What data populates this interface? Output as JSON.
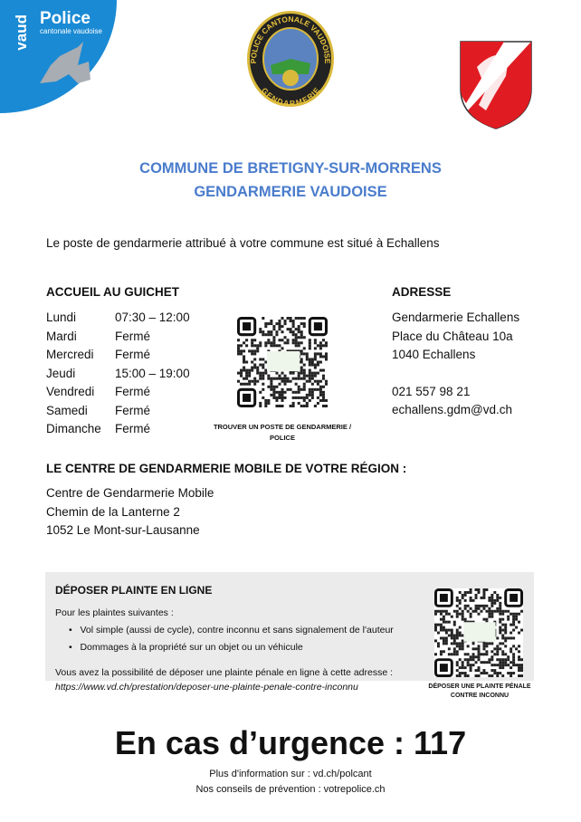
{
  "header": {
    "logo_left": {
      "brand": "Police",
      "sub": "cantonale vaudoise",
      "canton": "vaud",
      "color": "#1a8ad4"
    },
    "emblem": {
      "ring_text_top": "POLICE CANTONALE VAUDOISE",
      "ring_text_bottom": "GENDARMERIE"
    },
    "coat_of_arms": "red-white-goat-shield"
  },
  "title": {
    "line1": "COMMUNE DE BRETIGNY-SUR-MORRENS",
    "line2": "GENDARMERIE VAUDOISE",
    "color": "#4a7ccc"
  },
  "intro": "Le poste de gendarmerie attribué à votre commune est situé à Echallens",
  "guichet": {
    "heading": "ACCUEIL AU GUICHET",
    "rows": [
      {
        "day": "Lundi",
        "hours": "07:30 – 12:00"
      },
      {
        "day": "Mardi",
        "hours": "Fermé"
      },
      {
        "day": "Mercredi",
        "hours": "Fermé"
      },
      {
        "day": "Jeudi",
        "hours": "15:00 – 19:00"
      },
      {
        "day": "Vendredi",
        "hours": "Fermé"
      },
      {
        "day": "Samedi",
        "hours": "Fermé"
      },
      {
        "day": "Dimanche",
        "hours": "Fermé"
      }
    ]
  },
  "qr1": {
    "caption1": "TROUVER UN POSTE DE GENDARMERIE /",
    "caption2": "POLICE"
  },
  "adresse": {
    "heading": "ADRESSE",
    "line1": "Gendarmerie Echallens",
    "line2": "Place du Château 10a",
    "line3": "1040 Echallens",
    "phone": "021 557 98 21",
    "email": "echallens.gdm@vd.ch"
  },
  "mobile": {
    "heading": "LE CENTRE DE GENDARMERIE MOBILE DE VOTRE RÉGION :",
    "line1": "Centre de Gendarmerie Mobile",
    "line2": "Chemin de la Lanterne 2",
    "line3": "1052 Le Mont-sur-Lausanne"
  },
  "plainte": {
    "heading": "DÉPOSER PLAINTE EN LIGNE",
    "intro": "Pour les plaintes suivantes :",
    "items": [
      "Vol simple (aussi de cycle), contre inconnu et sans signalement de l'auteur",
      "Dommages à la propriété sur un objet ou un véhicule"
    ],
    "text": "Vous avez la possibilité de déposer une plainte pénale en ligne à cette adresse :",
    "url": "https://www.vd.ch/prestation/deposer-une-plainte-penale-contre-inconnu",
    "qr_caption1": "DÉPOSER UNE PLAINTE PÉNALE",
    "qr_caption2": "CONTRE INCONNU"
  },
  "urgence": "En cas d’urgence : 117",
  "footer": {
    "line1": "Plus d'information sur : vd.ch/polcant",
    "line2": "Nos conseils de prévention : votrepolice.ch"
  }
}
